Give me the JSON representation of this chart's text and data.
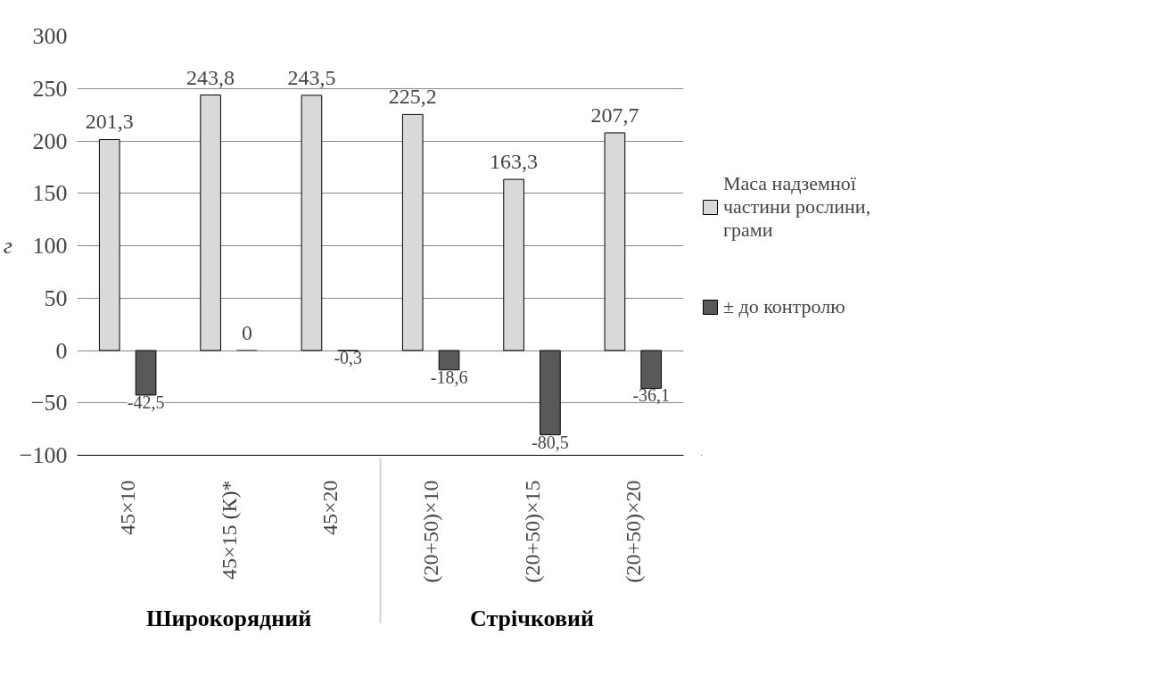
{
  "chart_data": {
    "type": "bar",
    "ylabel": "г",
    "categories": [
      "45×10",
      "45×15 (К)*",
      "45×20",
      "(20+50)×10",
      "(20+50)×15",
      "(20+50)×20"
    ],
    "annotations": [
      "Широкорядний",
      "Стрічковий"
    ],
    "series": [
      {
        "name": "Маса надземної частини рослини, грами",
        "color": "#d9d9d9",
        "values": [
          201.3,
          243.8,
          243.5,
          225.2,
          163.3,
          207.7
        ],
        "value_labels": [
          "201,3",
          "243,8",
          "243,5",
          "225,2",
          "163,3",
          "207,7"
        ]
      },
      {
        "name": "± до контролю",
        "color": "#595959",
        "values": [
          -42.5,
          0,
          -0.3,
          -18.6,
          -80.5,
          -36.1
        ],
        "value_labels": [
          "-42,5",
          "0",
          "-0,3",
          "-18,6",
          "-80,5",
          "-36,1"
        ]
      }
    ],
    "ylim": [
      -100,
      300
    ],
    "yticks": [
      -100,
      -50,
      0,
      50,
      100,
      150,
      200,
      250,
      300
    ],
    "grid": "y",
    "legend": "right"
  }
}
